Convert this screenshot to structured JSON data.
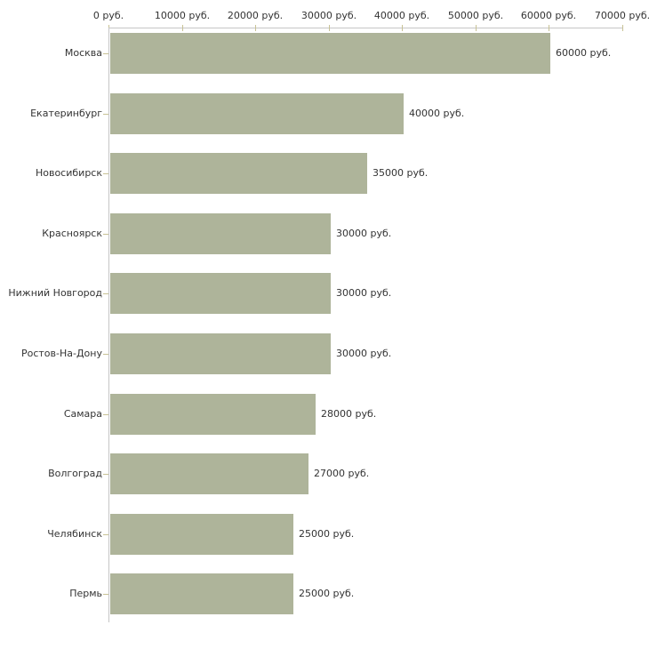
{
  "chart_data": {
    "type": "bar",
    "orientation": "horizontal",
    "title": "",
    "xlabel": "",
    "ylabel": "",
    "categories": [
      "Москва",
      "Екатеринбург",
      "Новосибирск",
      "Красноярск",
      "Нижний Новгород",
      "Ростов-На-Дону",
      "Самара",
      "Волгоград",
      "Челябинск",
      "Пермь"
    ],
    "values": [
      60000,
      40000,
      35000,
      30000,
      30000,
      30000,
      28000,
      27000,
      25000,
      25000
    ],
    "value_labels": [
      "60000 руб.",
      "40000 руб.",
      "35000 руб.",
      "30000 руб.",
      "30000 руб.",
      "30000 руб.",
      "28000 руб.",
      "27000 руб.",
      "25000 руб.",
      "25000 руб."
    ],
    "xlim": [
      0,
      70000
    ],
    "x_ticks": [
      0,
      10000,
      20000,
      30000,
      40000,
      50000,
      60000,
      70000
    ],
    "x_tick_labels": [
      "0 руб.",
      "10000 руб.",
      "20000 руб.",
      "30000 руб.",
      "40000 руб.",
      "50000 руб.",
      "60000 руб.",
      "70000 руб."
    ],
    "grid": false,
    "legend": false,
    "colors": {
      "bar": "#aeb49a",
      "axis_line": "#c6c6c6",
      "tick_mark": "#c8c295",
      "text": "#333333",
      "background": "#ffffff"
    }
  }
}
